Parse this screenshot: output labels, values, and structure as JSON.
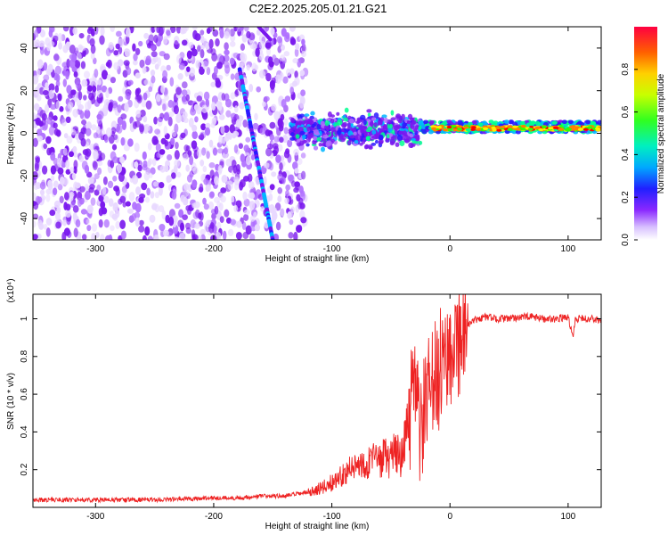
{
  "title": "C2E2.2025.205.01.21.G21",
  "colors": {
    "snr_line": "#ee2222",
    "colormap": [
      "#ffffff",
      "#e8d8ff",
      "#b070ff",
      "#7a18ee",
      "#2a18ff",
      "#00b6ff",
      "#00ff90",
      "#30ff00",
      "#ffee00",
      "#ff8000",
      "#ff0000"
    ]
  },
  "chart_data": [
    {
      "type": "heatmap",
      "title": "C2E2.2025.205.01.21.G21",
      "xlabel": "Height of straight line (km)",
      "ylabel": "Frequency (Hz)",
      "xlim": [
        -353,
        128
      ],
      "ylim": [
        -50,
        50
      ],
      "x_ticks": [
        -300,
        -200,
        -100,
        0,
        100
      ],
      "y_ticks": [
        -40,
        -20,
        0,
        20,
        40
      ],
      "colorbar": {
        "label": "Normalized spectral amplitude",
        "range": [
          0,
          1
        ],
        "ticks": [
          0.0,
          0.2,
          0.4,
          0.6,
          0.8
        ]
      },
      "features": [
        {
          "name": "noise",
          "x_range": [
            -353,
            -122
          ],
          "f_range": [
            -50,
            50
          ],
          "amplitude": 0.15
        },
        {
          "name": "satellite-trace",
          "x_start": -178,
          "x_end": -150,
          "f_start": 30,
          "f_end": -50,
          "amplitude": 0.45
        },
        {
          "name": "carrier-spread",
          "x_range": [
            -135,
            -25
          ],
          "f_range": [
            -12,
            10
          ],
          "amplitude": 0.5
        },
        {
          "name": "carrier",
          "x_range": [
            -25,
            128
          ],
          "f_center": 3,
          "amplitude": 0.9
        }
      ]
    },
    {
      "type": "line",
      "xlabel": "Height of straight line (km)",
      "ylabel": "SNR (10 * v/v)",
      "y_multiplier": "(x10⁴)",
      "xlim": [
        -353,
        128
      ],
      "ylim": [
        0,
        1.13
      ],
      "x_ticks": [
        -300,
        -200,
        -100,
        0,
        100
      ],
      "y_ticks": [
        0.2,
        0.4,
        0.6,
        0.8,
        1.0
      ],
      "series": [
        {
          "x": [
            -353,
            -300,
            -250,
            -200,
            -180,
            -160,
            -140,
            -130,
            -120,
            -110,
            -100,
            -90,
            -80,
            -70,
            -60,
            -50,
            -45,
            -40,
            -35,
            -30,
            -25,
            -20,
            -15,
            -10,
            -5,
            0,
            5,
            10,
            20,
            30,
            40,
            50,
            60,
            70,
            80,
            90,
            100,
            104,
            106,
            110,
            120,
            128
          ],
          "y": [
            0.04,
            0.04,
            0.04,
            0.05,
            0.05,
            0.06,
            0.06,
            0.07,
            0.08,
            0.1,
            0.13,
            0.18,
            0.22,
            0.24,
            0.25,
            0.27,
            0.27,
            0.3,
            0.45,
            0.62,
            0.4,
            0.55,
            0.65,
            0.7,
            0.8,
            0.85,
            0.88,
            0.92,
            0.99,
            1.01,
            1.0,
            1.0,
            1.01,
            1.01,
            1.0,
            1.0,
            1.01,
            0.9,
            1.0,
            1.0,
            1.0,
            0.99
          ]
        }
      ]
    }
  ]
}
